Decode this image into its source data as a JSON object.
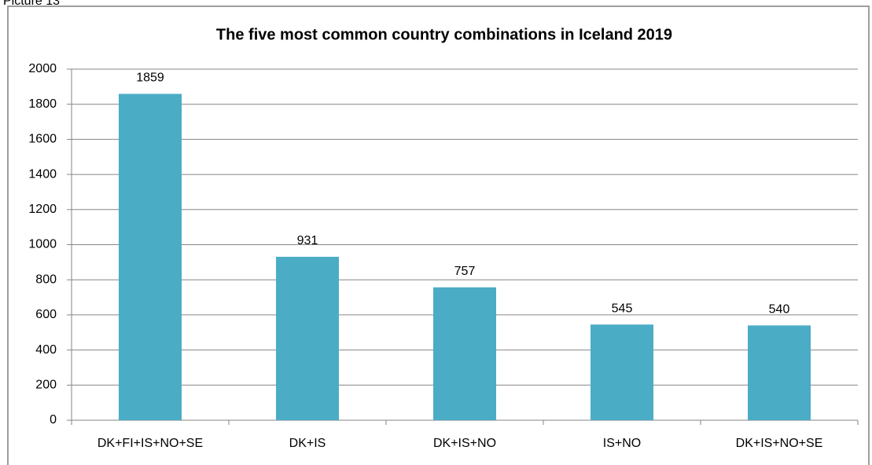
{
  "caption": "Picture 13",
  "chart_data": {
    "type": "bar",
    "title": "The five most common country combinations in Iceland 2019",
    "categories": [
      "DK+FI+IS+NO+SE",
      "DK+IS",
      "DK+IS+NO",
      "IS+NO",
      "DK+IS+NO+SE"
    ],
    "values": [
      1859,
      931,
      757,
      545,
      540
    ],
    "color": "#4bacc6",
    "ylim": [
      0,
      2000
    ],
    "yticks": [
      0,
      200,
      400,
      600,
      800,
      1000,
      1200,
      1400,
      1600,
      1800,
      2000
    ],
    "grid": true
  }
}
